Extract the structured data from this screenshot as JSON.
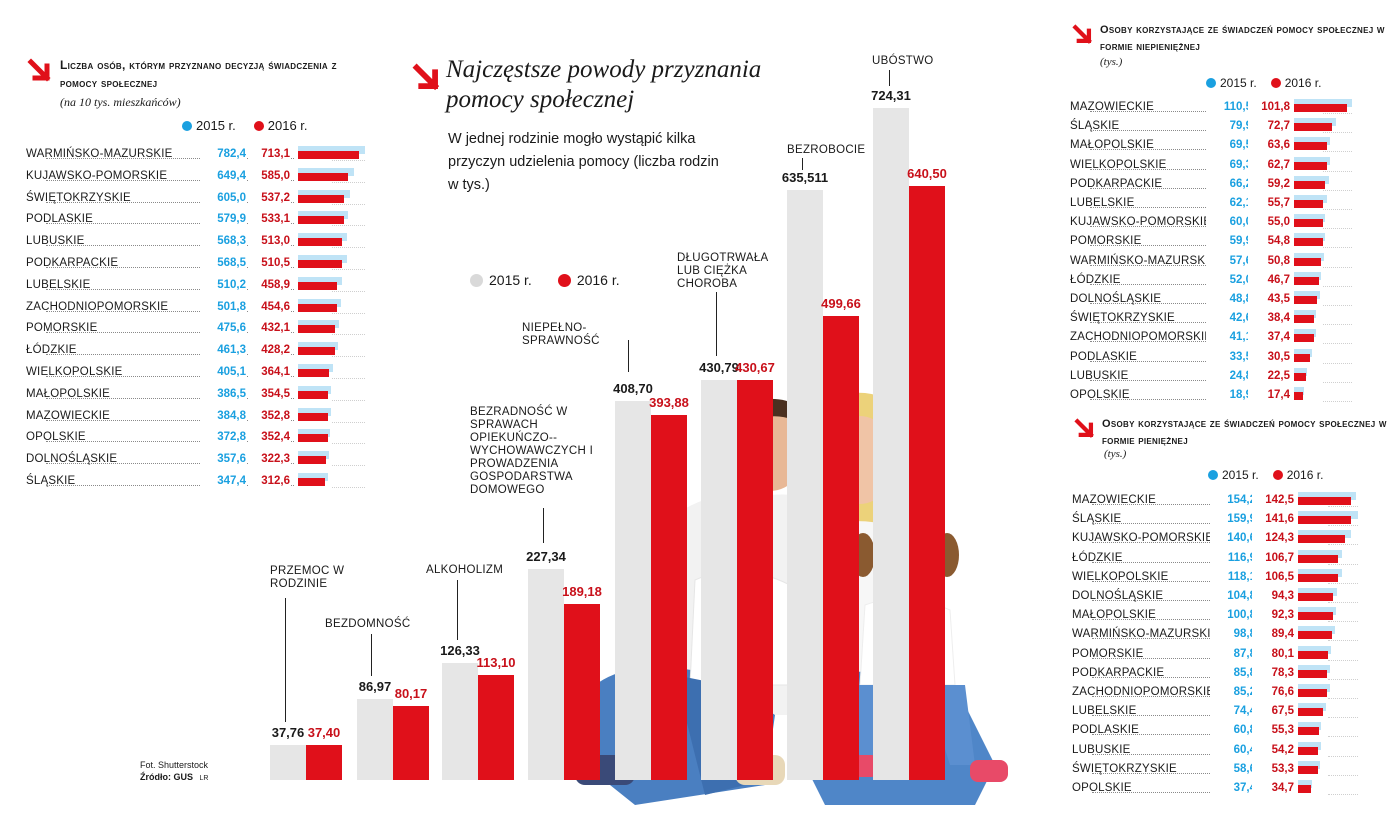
{
  "colors": {
    "blue": "#1aa0e0",
    "red": "#e0101a",
    "light_blue": "#bfe3f6",
    "grey_bar": "#e6e6e6"
  },
  "legend": {
    "y2015": "2015 r.",
    "y2016": "2016 r."
  },
  "footer": {
    "photo": "Fot. Shutterstock",
    "source": "Źródło: GUS",
    "initials": "LR"
  },
  "chart_data": [
    {
      "type": "bar",
      "title": "Liczba osób, którym przyznano decyzją świadczenia z pomocy społecznej",
      "subtitle": "(na 10 tys. mieszkańców)",
      "categories": [
        "WARMIŃSKO-MAZURSKIE",
        "KUJAWSKO-POMORSKIE",
        "ŚWIĘTOKRZYSKIE",
        "PODLASKIE",
        "LUBUSKIE",
        "PODKARPACKIE",
        "LUBELSKIE",
        "ZACHODNIOPOMORSKIE",
        "POMORSKIE",
        "ŁÓDZKIE",
        "WIELKOPOLSKIE",
        "MAŁOPOLSKIE",
        "MAZOWIECKIE",
        "OPOLSKIE",
        "DOLNOŚLĄSKIE",
        "ŚLĄSKIE"
      ],
      "series": [
        {
          "name": "2015 r.",
          "values": [
            "782,4",
            "649,4",
            "605,0",
            "579,9",
            "568,3",
            "568,5",
            "510,2",
            "501,8",
            "475,6",
            "461,3",
            "405,1",
            "386,5",
            "384,8",
            "372,8",
            "357,6",
            "347,4"
          ]
        },
        {
          "name": "2016 r.",
          "values": [
            "713,1",
            "585,0",
            "537,2",
            "533,1",
            "513,0",
            "510,5",
            "458,9",
            "454,6",
            "432,1",
            "428,2",
            "364,1",
            "354,5",
            "352,8",
            "352,4",
            "322,3",
            "312,6"
          ]
        }
      ]
    },
    {
      "type": "bar",
      "title": "Najczęstsze powody przyznania pomocy społecznej",
      "subtitle": "W jednej rodzinie mogło wystąpić kilka przyczyn udzielenia pomocy (liczba rodzin w tys.)",
      "categories": [
        "PRZEMOC W RODZINIE",
        "BEZDOMNOŚĆ",
        "ALKOHOLIZM",
        "BEZRADNOŚĆ W SPRAWACH OPIEKUŃCZO--WYCHOWAWCZYCH I PROWADZENIA GOSPODARSTWA DOMOWEGO",
        "NIEPEŁNO-SPRAWNOŚĆ",
        "DŁUGOTRWAŁA LUB CIĘŻKA CHOROBA",
        "BEZROBOCIE",
        "UBÓSTWO"
      ],
      "series": [
        {
          "name": "2015 r.",
          "values": [
            "37,76",
            "86,97",
            "126,33",
            "227,34",
            "408,70",
            "430,79",
            "635,511",
            "724,31"
          ]
        },
        {
          "name": "2016 r.",
          "values": [
            "37,40",
            "80,17",
            "113,10",
            "189,18",
            "393,88",
            "430,67",
            "499,66",
            "640,50"
          ]
        }
      ]
    },
    {
      "type": "bar",
      "title": "Osoby korzystające ze świadczeń pomocy społecznej w formie niepieniężnej",
      "subtitle": "(tys.)",
      "categories": [
        "MAZOWIECKIE",
        "ŚLĄSKIE",
        "MAŁOPOLSKIE",
        "WIELKOPOLSKIE",
        "PODKARPACKIE",
        "LUBELSKIE",
        "KUJAWSKO-POMORSKIE",
        "POMORSKIE",
        "WARMIŃSKO-MAZURSKIE",
        "ŁÓDZKIE",
        "DOLNOŚLĄSKIE",
        "ŚWIĘTOKRZYSKIE",
        "ZACHODNIOPOMORSKIE",
        "PODLASKIE",
        "LUBUSKIE",
        "OPOLSKIE"
      ],
      "series": [
        {
          "name": "2015 r.",
          "values": [
            "110,5",
            "79,9",
            "69,5",
            "69,3",
            "66,2",
            "62,1",
            "60,0",
            "59,9",
            "57,6",
            "52,0",
            "48,8",
            "42,6",
            "41,1",
            "33,5",
            "24,8",
            "18,9"
          ]
        },
        {
          "name": "2016 r.",
          "values": [
            "101,8",
            "72,7",
            "63,6",
            "62,7",
            "59,2",
            "55,7",
            "55,0",
            "54,8",
            "50,8",
            "46,7",
            "43,5",
            "38,4",
            "37,4",
            "30,5",
            "22,5",
            "17,4"
          ]
        }
      ]
    },
    {
      "type": "bar",
      "title": "Osoby korzystające ze świadczeń pomocy społecznej w formie pieniężnej",
      "subtitle": "(tys.)",
      "categories": [
        "MAZOWIECKIE",
        "ŚLĄSKIE",
        "KUJAWSKO-POMORSKIE",
        "ŁÓDZKIE",
        "WIELKOPOLSKIE",
        "DOLNOŚLĄSKIE",
        "MAŁOPOLSKIE",
        "WARMIŃSKO-MAZURSKIE",
        "POMORSKIE",
        "PODKARPACKIE",
        "ZACHODNIOPOMORSKIE",
        "LUBELSKIE",
        "PODLASKIE",
        "LUBUSKIE",
        "ŚWIĘTOKRZYSKIE",
        "OPOLSKIE"
      ],
      "series": [
        {
          "name": "2015 r.",
          "values": [
            "154,2",
            "159,9",
            "140,6",
            "116,9",
            "118,1",
            "104,8",
            "100,8",
            "98,8",
            "87,8",
            "85,8",
            "85,2",
            "74,4",
            "60,8",
            "60,4",
            "58,6",
            "37,4"
          ]
        },
        {
          "name": "2016 r.",
          "values": [
            "142,5",
            "141,6",
            "124,3",
            "106,7",
            "106,5",
            "94,3",
            "92,3",
            "89,4",
            "80,1",
            "78,3",
            "76,6",
            "67,5",
            "55,3",
            "54,2",
            "53,3",
            "34,7"
          ]
        }
      ]
    }
  ]
}
